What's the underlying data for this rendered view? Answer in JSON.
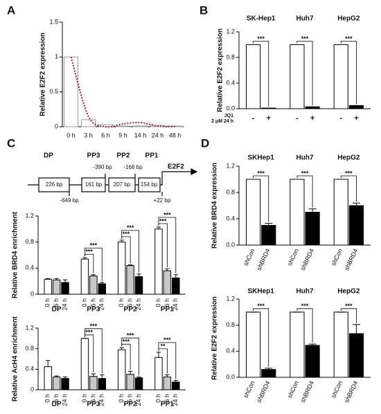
{
  "panels": [
    "A",
    "B",
    "C",
    "D"
  ],
  "diagram": {
    "regions": [
      "DP",
      "PP3",
      "PP2",
      "PP1"
    ],
    "boxes": [
      "226 bp",
      "161 bp",
      "207 bp",
      "154 bp"
    ],
    "gene": "E2F2",
    "positions": [
      "-649 bp",
      "-390 bp",
      "-168 bp",
      "+22 bp"
    ]
  },
  "chart_data": [
    {
      "type": "bar",
      "y_label": "Relative E2F2 expression",
      "categories": [
        "0 h",
        "3 h",
        "6 h",
        "9 h",
        "14 h",
        "24 h",
        "48 h"
      ],
      "values": [
        1,
        0.1,
        0.03,
        0.01,
        0.01,
        0.02,
        0.01
      ],
      "color": "#9a9a9a",
      "fit_values": [
        1,
        0.15,
        0,
        0.04,
        0.06,
        0.01,
        0
      ],
      "fit_color": "#a01a3c",
      "ylim": [
        0,
        1.5
      ],
      "yticks": [
        0,
        0.5,
        1,
        1.5
      ]
    },
    {
      "type": "grouped_bar",
      "y_label": "Relative E2F2 expression",
      "groups": [
        "SK-Hep1",
        "Huh7",
        "HepG2"
      ],
      "x_row_labels": [
        "JQ1",
        "2 μM 24 h"
      ],
      "series": [
        {
          "name": "-",
          "color": "#ffffff",
          "values": [
            1,
            1,
            1
          ]
        },
        {
          "name": "+",
          "color": "#000000",
          "values": [
            0.01,
            0.03,
            0.05
          ]
        }
      ],
      "significance": [
        [
          "***"
        ],
        [
          "***"
        ],
        [
          "***"
        ]
      ],
      "ylim": [
        0,
        1.2
      ],
      "yticks": [
        {
          "value": 0,
          "label": "0.0"
        },
        0.4,
        0.8,
        1.2
      ]
    },
    {
      "type": "grouped_bar",
      "y_label": "Relative BRD4 enrichment",
      "groups": [
        "DP",
        "PP3",
        "PP2",
        "PP1"
      ],
      "series": [
        {
          "name": "0 h",
          "color": "#ffffff",
          "values": [
            0.23,
            0.54,
            0.8,
            1.0
          ],
          "errors": [
            0.01,
            0.02,
            0.03,
            0.03
          ]
        },
        {
          "name": "6 h",
          "color": "#c8c8c8",
          "values": [
            0.22,
            0.28,
            0.44,
            0.36
          ],
          "errors": [
            0.02,
            0.02,
            0.01,
            0.03
          ]
        },
        {
          "name": "24 h",
          "color": "#000000",
          "values": [
            0.18,
            0.16,
            0.27,
            0.25
          ],
          "errors": [
            0.04,
            0.02,
            0.04,
            0.05
          ]
        }
      ],
      "significance": [
        [],
        [
          "***",
          "***"
        ],
        [
          "***",
          "***"
        ],
        [
          "***",
          "***"
        ]
      ],
      "ylim": [
        0,
        1.2
      ],
      "yticks": [
        0,
        0.4,
        0.8,
        1.2
      ]
    },
    {
      "type": "grouped_bar",
      "y_label": "Relative AcH4 enrichment",
      "groups": [
        "DP",
        "PP3",
        "PP2",
        "PP1"
      ],
      "series": [
        {
          "name": "0 h",
          "color": "#ffffff",
          "values": [
            0.45,
            1.0,
            0.78,
            0.63
          ],
          "errors": [
            0.12,
            0.0,
            0.04,
            0.1
          ]
        },
        {
          "name": "6 h",
          "color": "#c8c8c8",
          "values": [
            0.25,
            0.26,
            0.3,
            0.25
          ],
          "errors": [
            0.02,
            0.05,
            0.06,
            0.04
          ]
        },
        {
          "name": "24 h",
          "color": "#000000",
          "values": [
            0.22,
            0.22,
            0.23,
            0.15
          ],
          "errors": [
            0.03,
            0.07,
            0.02,
            0.03
          ]
        }
      ],
      "significance": [
        [],
        [
          "***",
          "***"
        ],
        [
          "***",
          "***"
        ],
        [
          "**",
          "***"
        ]
      ],
      "ylim": [
        0,
        1.2
      ],
      "yticks": [
        0,
        0.4,
        0.8,
        1.2
      ]
    },
    {
      "type": "grouped_bar",
      "y_label": "Relative BRD4 expression",
      "groups": [
        "SKHep1",
        "Huh7",
        "HepG2"
      ],
      "series": [
        {
          "name": "shCon",
          "color": "#ffffff",
          "values": [
            1,
            1,
            1
          ],
          "errors": [
            0,
            0,
            0
          ]
        },
        {
          "name": "shBRD4",
          "color": "#000000",
          "values": [
            0.3,
            0.5,
            0.6
          ],
          "errors": [
            0.03,
            0.05,
            0.04
          ]
        }
      ],
      "significance": [
        [
          "***"
        ],
        [
          "***"
        ],
        [
          "***"
        ]
      ],
      "ylim": [
        0,
        1.2
      ],
      "yticks": [
        {
          "value": 0,
          "label": "0.0"
        },
        0.4,
        0.8,
        1.2
      ]
    },
    {
      "type": "grouped_bar",
      "y_label": "Relative E2F2 expression",
      "groups": [
        "SKHep1",
        "Huh7",
        "HepG2"
      ],
      "series": [
        {
          "name": "shCon",
          "color": "#ffffff",
          "values": [
            1,
            1,
            1
          ],
          "errors": [
            0,
            0,
            0
          ]
        },
        {
          "name": "shBRD4",
          "color": "#000000",
          "values": [
            0.12,
            0.49,
            0.67
          ],
          "errors": [
            0.02,
            0.02,
            0.14
          ]
        }
      ],
      "significance": [
        [
          "***"
        ],
        [
          "***"
        ],
        [
          "***"
        ]
      ],
      "ylim": [
        0,
        1.2
      ],
      "yticks": [
        {
          "value": 0,
          "label": "0.0"
        },
        0.4,
        0.8,
        1.2
      ]
    }
  ]
}
